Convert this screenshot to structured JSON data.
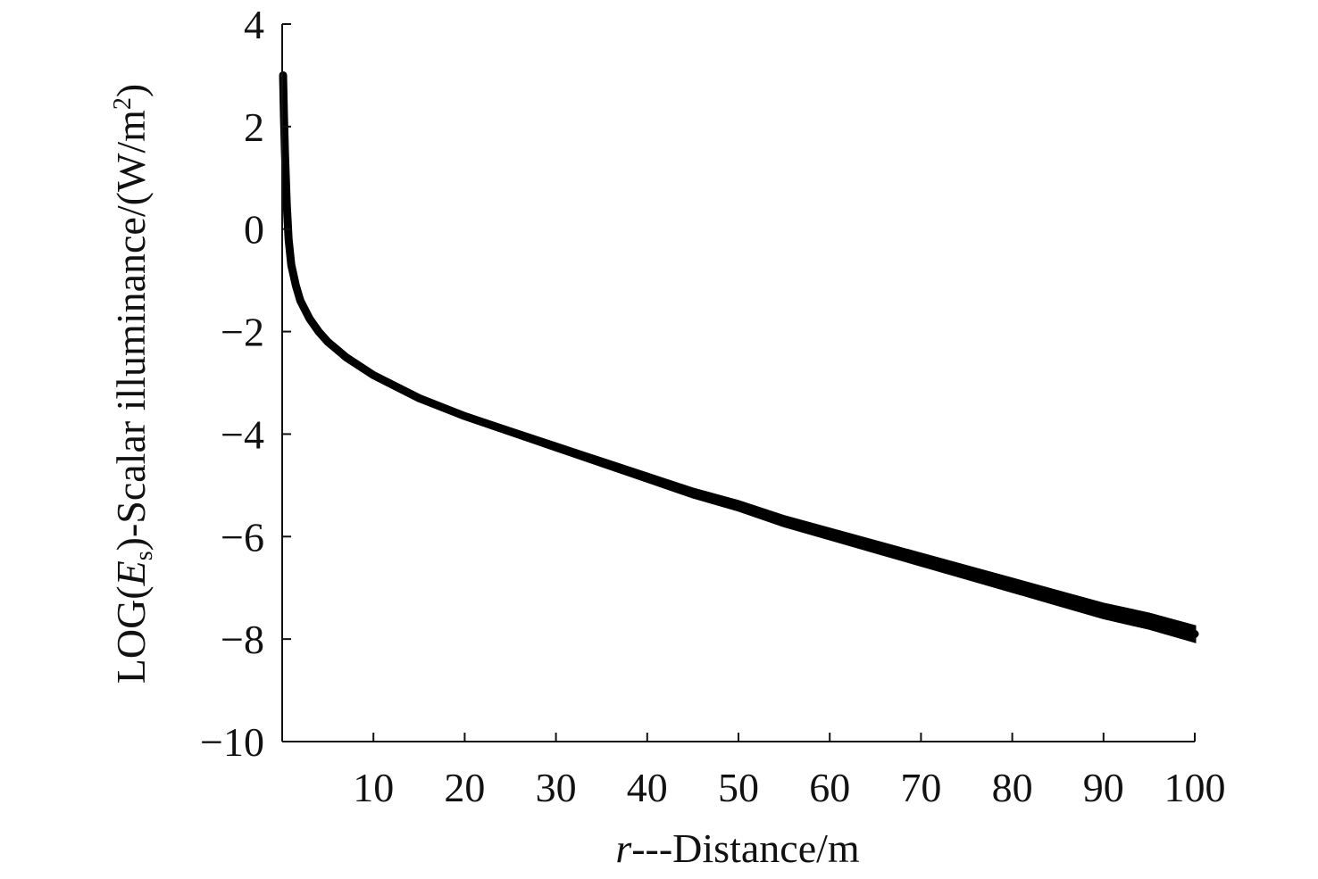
{
  "chart_data": {
    "type": "scatter",
    "title": "",
    "xlabel": {
      "prefix": "r",
      "text": "---Distance/m"
    },
    "ylabel": {
      "prefix": "LOG(",
      "var": "E",
      "sub": "s",
      "mid": ")-Scalar illuminance/(W/m",
      "sup": "2",
      "suffix": ")"
    },
    "xlim": [
      0,
      100
    ],
    "ylim": [
      -10,
      4
    ],
    "x_ticks": [
      10,
      20,
      30,
      40,
      50,
      60,
      70,
      80,
      90,
      100
    ],
    "x_tick_labels": [
      "10",
      "20",
      "30",
      "40",
      "50",
      "60",
      "70",
      "80",
      "90",
      "100"
    ],
    "y_ticks": [
      4,
      2,
      0,
      -2,
      -4,
      -6,
      -8,
      -10
    ],
    "y_tick_labels": [
      "4",
      "2",
      "0",
      "−2",
      "−4",
      "−6",
      "−8",
      "−10"
    ],
    "grid": false,
    "legend": "none",
    "series": [
      {
        "color": "#000000",
        "x": [
          0.1,
          0.2,
          0.3,
          0.5,
          0.7,
          1,
          1.5,
          2,
          3,
          4,
          5,
          7,
          10,
          15,
          20,
          25,
          30,
          35,
          40,
          45,
          50,
          55,
          60,
          65,
          70,
          75,
          80,
          85,
          90,
          95,
          100
        ],
        "y": [
          3.0,
          2.2,
          1.5,
          0.5,
          -0.2,
          -0.7,
          -1.1,
          -1.4,
          -1.75,
          -2.0,
          -2.2,
          -2.5,
          -2.85,
          -3.3,
          -3.65,
          -3.95,
          -4.25,
          -4.55,
          -4.85,
          -5.15,
          -5.4,
          -5.7,
          -5.95,
          -6.2,
          -6.45,
          -6.7,
          -6.95,
          -7.2,
          -7.45,
          -7.65,
          -7.9
        ]
      }
    ]
  }
}
